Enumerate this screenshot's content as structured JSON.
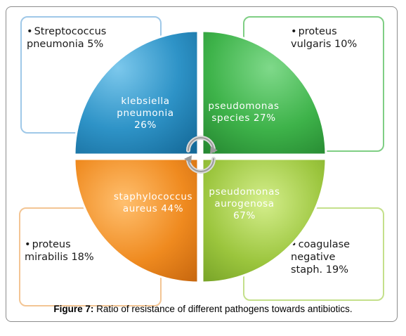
{
  "boxes": {
    "top_left": "Streptococcus pneumonia 5%",
    "top_right": "proteus vulgaris 10%",
    "bottom_left": "proteus mirabilis 18%",
    "bottom_right": "coagulase negative staph. 19%"
  },
  "quadrants": {
    "top_left": "klebsiella pneumonia 26%",
    "top_right": "pseudomonas species 27%",
    "bottom_left": "staphylococcus aureus 44%",
    "bottom_right": "pseudomonas aurogenosa 67%"
  },
  "caption": {
    "label": "Figure 7:",
    "text": " Ratio of resistance of different pathogens towards antibiotics."
  },
  "colors": {
    "blue": "#2e93c7",
    "green": "#3eb34a",
    "orange": "#ef8a1f",
    "lime": "#9bc53d"
  }
}
